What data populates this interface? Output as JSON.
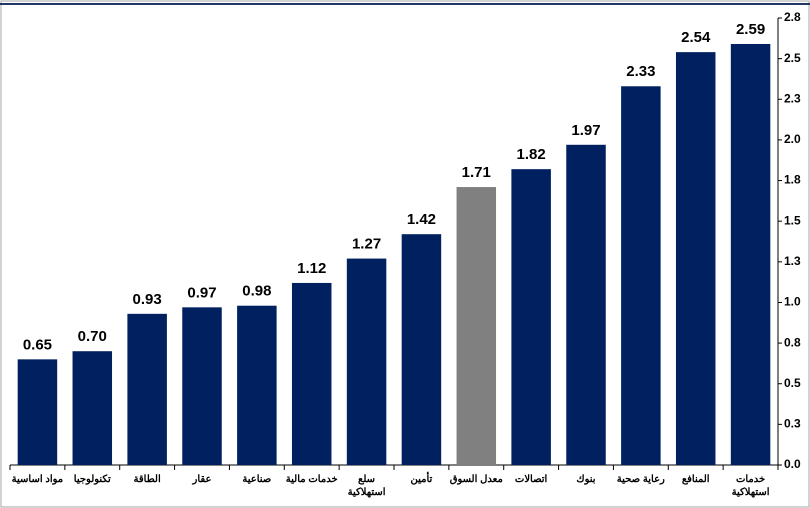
{
  "chart_data": {
    "type": "bar",
    "categories": [
      "مواد اساسية",
      "تكنولوجيا",
      "الطاقة",
      "عقار",
      "صناعية",
      "خدمات مالية",
      "سلع استهلاكية",
      "تأمين",
      "معدل السوق",
      "اتصالات",
      "بنوك",
      "رعاية صحية",
      "المنافع",
      "خدمات استهلاكية"
    ],
    "values": [
      0.65,
      0.7,
      0.93,
      0.97,
      0.98,
      1.12,
      1.27,
      1.42,
      1.71,
      1.82,
      1.97,
      2.33,
      2.54,
      2.59
    ],
    "value_labels": [
      "0.65",
      "0.70",
      "0.93",
      "0.97",
      "0.98",
      "1.12",
      "1.27",
      "1.42",
      "1.71",
      "1.82",
      "1.97",
      "2.33",
      "2.54",
      "2.59"
    ],
    "colors": [
      "#002060",
      "#002060",
      "#002060",
      "#002060",
      "#002060",
      "#002060",
      "#002060",
      "#002060",
      "#808080",
      "#002060",
      "#002060",
      "#002060",
      "#002060",
      "#002060"
    ],
    "ylim": [
      0,
      2.75
    ],
    "yticks": [
      {
        "value": 0,
        "label": "0.0"
      },
      {
        "value": 0.25,
        "label": "0.3"
      },
      {
        "value": 0.5,
        "label": "0.5"
      },
      {
        "value": 0.75,
        "label": "0.8"
      },
      {
        "value": 1,
        "label": "1.0"
      },
      {
        "value": 1.25,
        "label": "1.3"
      },
      {
        "value": 1.5,
        "label": "1.5"
      },
      {
        "value": 1.75,
        "label": "1.8"
      },
      {
        "value": 2,
        "label": "2.0"
      },
      {
        "value": 2.25,
        "label": "2.3"
      },
      {
        "value": 2.5,
        "label": "2.5"
      },
      {
        "value": 2.75,
        "label": "2.8"
      }
    ],
    "y_axis_side": "right",
    "grid": false
  }
}
